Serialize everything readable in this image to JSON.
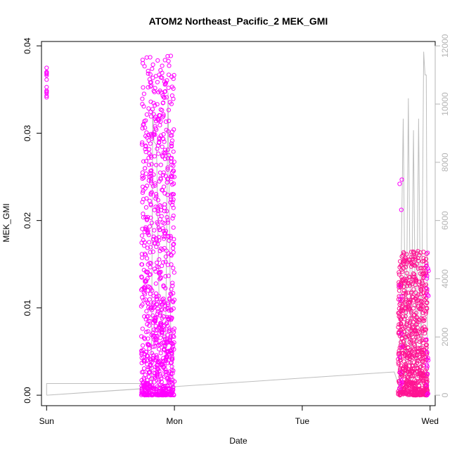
{
  "chart_data": {
    "type": "scatter",
    "title": "ATOM2 Northeast_Pacific_2 MEK_GMI",
    "xlabel": "Date",
    "ylabel": "MEK_GMI",
    "x_tick_labels": [
      "Sun",
      "Mon",
      "Tue",
      "Wed"
    ],
    "x_range_days": [
      -0.04,
      3.04
    ],
    "ylim": [
      -0.0012,
      0.0405
    ],
    "y_ticks": [
      0.0,
      0.01,
      0.02,
      0.03,
      0.04
    ],
    "y_tick_labels": [
      "0.00",
      "0.01",
      "0.02",
      "0.03",
      "0.04"
    ],
    "y2lim": [
      -360,
      12150
    ],
    "y2_ticks": [
      0,
      2000,
      4000,
      6000,
      8000,
      10000,
      12000
    ],
    "y2_tick_labels": [
      "0",
      "2000",
      "4000",
      "6000",
      "8000",
      "10000",
      "12000"
    ],
    "colors": {
      "magenta": "#ff00ff",
      "pink": "#ff1493",
      "grey": "#bebebe",
      "axis": "#000000",
      "axis2": "#b4b4b4"
    },
    "series": [
      {
        "marker": "open-circle",
        "clusters": [
          {
            "x_day": [
              0.0,
              0.0
            ],
            "y": [
              0.0333,
              0.0375
            ],
            "n": 14,
            "color": "magenta"
          },
          {
            "x_day": [
              0.74,
              1.0
            ],
            "y": [
              0.0,
              0.039
            ],
            "n": 900,
            "color": "magenta"
          },
          {
            "x_day": [
              2.75,
              2.98
            ],
            "y": [
              0.0,
              0.0165
            ],
            "n": 700,
            "color": "pink"
          },
          {
            "x_day": [
              2.76,
              2.78
            ],
            "y": [
              0.0,
              0.03
            ],
            "n": 14,
            "color": "magenta"
          },
          {
            "x_day": [
              2.97,
              2.99
            ],
            "y": [
              0.0,
              0.0165
            ],
            "n": 20,
            "color": "magenta"
          }
        ]
      },
      {
        "line": true,
        "axis": "right",
        "points": [
          [
            0.0,
            0
          ],
          [
            0.0,
            400
          ],
          [
            0.82,
            400
          ],
          [
            0.82,
            200
          ],
          [
            0.83,
            9800
          ],
          [
            0.84,
            8700
          ],
          [
            0.86,
            8600
          ],
          [
            0.88,
            3200
          ],
          [
            0.9,
            2700
          ],
          [
            0.93,
            1500
          ],
          [
            0.95,
            10400
          ],
          [
            0.97,
            2500
          ],
          [
            0.99,
            300
          ],
          [
            0.0,
            0
          ],
          [
            2.72,
            800
          ],
          [
            2.76,
            250
          ],
          [
            2.79,
            9500
          ],
          [
            2.81,
            300
          ],
          [
            2.83,
            10200
          ],
          [
            2.85,
            400
          ],
          [
            2.87,
            9100
          ],
          [
            2.89,
            300
          ],
          [
            2.91,
            9500
          ],
          [
            2.93,
            300
          ],
          [
            2.95,
            11800
          ],
          [
            2.96,
            11000
          ],
          [
            2.97,
            11000
          ],
          [
            2.98,
            200
          ]
        ]
      }
    ]
  }
}
